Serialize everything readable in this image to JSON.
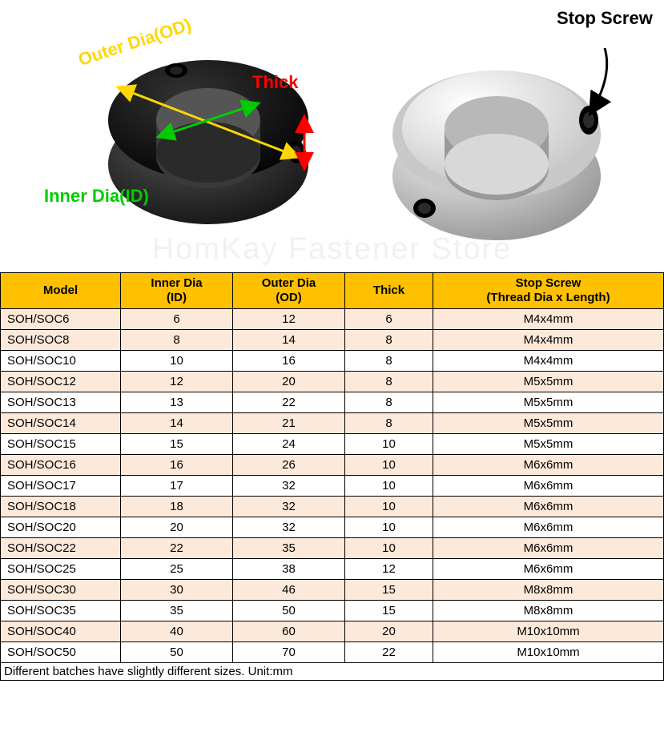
{
  "labels": {
    "outer_dia": "Outer Dia(OD)",
    "thick": "Thick",
    "inner_dia": "Inner Dia(ID)",
    "stop_screw": "Stop Screw",
    "watermark": "HomKay Fastener Store"
  },
  "diagram": {
    "colors": {
      "black_collar_outer": "#2a2a2a",
      "black_collar_top": "#181818",
      "black_collar_hole": "#4a4a4a",
      "silver_collar_outer": "#d0d0d0",
      "silver_collar_top": "#e8e8e8",
      "silver_collar_hole": "#9a9a9a",
      "screw_black": "#0a0a0a",
      "od_arrow": "#ffd700",
      "id_arrow": "#00cc00",
      "thick_arrow": "#ff0000",
      "stop_arrow": "#000000"
    }
  },
  "table": {
    "header_bg": "#ffc000",
    "alt_row_bg": "#fde9d9",
    "border_color": "#000000",
    "columns": [
      {
        "key": "model",
        "label": "Model",
        "sub": ""
      },
      {
        "key": "id",
        "label": "Inner Dia",
        "sub": "(ID)"
      },
      {
        "key": "od",
        "label": "Outer Dia",
        "sub": "(OD)"
      },
      {
        "key": "thick",
        "label": "Thick",
        "sub": ""
      },
      {
        "key": "screw",
        "label": "Stop Screw",
        "sub": "(Thread Dia x Length)"
      }
    ],
    "rows": [
      {
        "model": "SOH/SOC6",
        "id": "6",
        "od": "12",
        "thick": "6",
        "screw": "M4x4mm",
        "alt": true
      },
      {
        "model": "SOH/SOC8",
        "id": "8",
        "od": "14",
        "thick": "8",
        "screw": "M4x4mm",
        "alt": true
      },
      {
        "model": "SOH/SOC10",
        "id": "10",
        "od": "16",
        "thick": "8",
        "screw": "M4x4mm",
        "alt": false
      },
      {
        "model": "SOH/SOC12",
        "id": "12",
        "od": "20",
        "thick": "8",
        "screw": "M5x5mm",
        "alt": true
      },
      {
        "model": "SOH/SOC13",
        "id": "13",
        "od": "22",
        "thick": "8",
        "screw": "M5x5mm",
        "alt": false
      },
      {
        "model": "SOH/SOC14",
        "id": "14",
        "od": "21",
        "thick": "8",
        "screw": "M5x5mm",
        "alt": true
      },
      {
        "model": "SOH/SOC15",
        "id": "15",
        "od": "24",
        "thick": "10",
        "screw": "M5x5mm",
        "alt": false
      },
      {
        "model": "SOH/SOC16",
        "id": "16",
        "od": "26",
        "thick": "10",
        "screw": "M6x6mm",
        "alt": true
      },
      {
        "model": "SOH/SOC17",
        "id": "17",
        "od": "32",
        "thick": "10",
        "screw": "M6x6mm",
        "alt": false
      },
      {
        "model": "SOH/SOC18",
        "id": "18",
        "od": "32",
        "thick": "10",
        "screw": "M6x6mm",
        "alt": true
      },
      {
        "model": "SOH/SOC20",
        "id": "20",
        "od": "32",
        "thick": "10",
        "screw": "M6x6mm",
        "alt": false
      },
      {
        "model": "SOH/SOC22",
        "id": "22",
        "od": "35",
        "thick": "10",
        "screw": "M6x6mm",
        "alt": true
      },
      {
        "model": "SOH/SOC25",
        "id": "25",
        "od": "38",
        "thick": "12",
        "screw": "M6x6mm",
        "alt": false
      },
      {
        "model": "SOH/SOC30",
        "id": "30",
        "od": "46",
        "thick": "15",
        "screw": "M8x8mm",
        "alt": true
      },
      {
        "model": "SOH/SOC35",
        "id": "35",
        "od": "50",
        "thick": "15",
        "screw": "M8x8mm",
        "alt": false
      },
      {
        "model": "SOH/SOC40",
        "id": "40",
        "od": "60",
        "thick": "20",
        "screw": "M10x10mm",
        "alt": true
      },
      {
        "model": "SOH/SOC50",
        "id": "50",
        "od": "70",
        "thick": "22",
        "screw": "M10x10mm",
        "alt": false
      }
    ],
    "footnote": "Different batches have slightly different sizes. Unit:mm"
  }
}
